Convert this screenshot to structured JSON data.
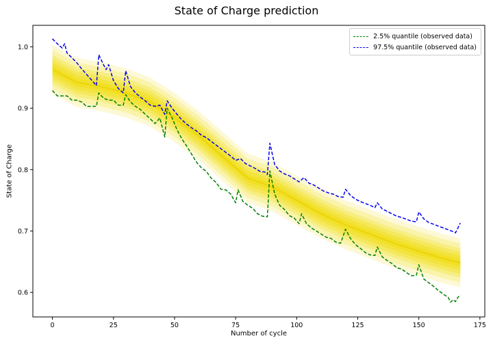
{
  "chart_data": {
    "type": "line",
    "title": "State of Charge prediction",
    "xlabel": "Number of cycle",
    "ylabel": "State of Charge",
    "xlim": [
      -8,
      177
    ],
    "ylim": [
      0.56,
      1.035
    ],
    "xticks": [
      0,
      25,
      50,
      75,
      100,
      125,
      150,
      175
    ],
    "yticks": [
      0.6,
      0.7,
      0.8,
      0.9,
      1.0
    ],
    "xtick_labels": [
      "0",
      "25",
      "50",
      "75",
      "100",
      "125",
      "150",
      "175"
    ],
    "ytick_labels": [
      "0.6",
      "0.7",
      "0.8",
      "0.9",
      "1.0"
    ],
    "grid": false,
    "legend_position": "top-right",
    "prediction_band": {
      "color": "#f0dc00",
      "x": [
        0,
        10,
        20,
        30,
        40,
        50,
        60,
        70,
        80,
        90,
        100,
        110,
        120,
        130,
        140,
        150,
        160,
        167
      ],
      "median": [
        0.963,
        0.942,
        0.935,
        0.925,
        0.91,
        0.885,
        0.855,
        0.82,
        0.786,
        0.772,
        0.75,
        0.728,
        0.71,
        0.695,
        0.68,
        0.667,
        0.655,
        0.648
      ],
      "quantile_offsets": [
        0.006,
        0.012,
        0.018,
        0.024,
        0.032,
        0.04
      ]
    },
    "series": [
      {
        "name": "2.5% quantile (observed data)",
        "color": "#008000",
        "x": [
          0,
          2,
          4,
          6,
          8,
          10,
          12,
          14,
          16,
          18,
          19,
          21,
          23,
          25,
          27,
          29,
          30,
          32,
          34,
          36,
          38,
          40,
          42,
          44,
          46,
          47,
          49,
          51,
          53,
          55,
          57,
          59,
          61,
          63,
          65,
          67,
          69,
          71,
          73,
          75,
          76,
          78,
          80,
          82,
          84,
          86,
          88,
          89,
          91,
          93,
          95,
          97,
          99,
          101,
          102,
          104,
          106,
          108,
          110,
          112,
          114,
          116,
          118,
          120,
          122,
          124,
          126,
          128,
          130,
          132,
          133,
          135,
          137,
          139,
          141,
          143,
          145,
          147,
          149,
          150,
          152,
          154,
          156,
          158,
          160,
          162,
          163,
          164,
          165,
          166,
          167
        ],
        "values": [
          0.929,
          0.92,
          0.92,
          0.92,
          0.913,
          0.913,
          0.91,
          0.903,
          0.903,
          0.903,
          0.925,
          0.916,
          0.913,
          0.913,
          0.905,
          0.905,
          0.922,
          0.91,
          0.903,
          0.898,
          0.89,
          0.883,
          0.875,
          0.884,
          0.853,
          0.9,
          0.884,
          0.865,
          0.85,
          0.838,
          0.825,
          0.812,
          0.803,
          0.797,
          0.786,
          0.779,
          0.768,
          0.767,
          0.76,
          0.746,
          0.767,
          0.748,
          0.742,
          0.737,
          0.728,
          0.724,
          0.723,
          0.798,
          0.76,
          0.742,
          0.735,
          0.725,
          0.721,
          0.712,
          0.728,
          0.712,
          0.705,
          0.7,
          0.695,
          0.69,
          0.688,
          0.682,
          0.68,
          0.703,
          0.688,
          0.678,
          0.672,
          0.665,
          0.661,
          0.66,
          0.674,
          0.658,
          0.652,
          0.647,
          0.64,
          0.638,
          0.632,
          0.627,
          0.628,
          0.645,
          0.622,
          0.616,
          0.61,
          0.603,
          0.597,
          0.592,
          0.584,
          0.588,
          0.585,
          0.592,
          0.596
        ]
      },
      {
        "name": "97.5% quantile (observed data)",
        "color": "#0000ee",
        "x": [
          0,
          2,
          4,
          5,
          6,
          8,
          10,
          12,
          14,
          16,
          18,
          19,
          21,
          22,
          23,
          25,
          27,
          29,
          30,
          32,
          34,
          36,
          38,
          40,
          42,
          44,
          46,
          47,
          49,
          51,
          53,
          55,
          57,
          59,
          61,
          63,
          65,
          67,
          69,
          71,
          73,
          75,
          77,
          79,
          81,
          83,
          85,
          87,
          88,
          89,
          91,
          93,
          95,
          97,
          99,
          101,
          103,
          105,
          107,
          109,
          111,
          113,
          115,
          117,
          119,
          120,
          122,
          124,
          126,
          128,
          130,
          132,
          133,
          135,
          137,
          139,
          141,
          143,
          145,
          147,
          149,
          150,
          152,
          154,
          156,
          158,
          160,
          162,
          164,
          165,
          166,
          167
        ],
        "values": [
          1.013,
          1.005,
          0.998,
          1.005,
          0.99,
          0.982,
          0.974,
          0.964,
          0.955,
          0.946,
          0.937,
          0.987,
          0.97,
          0.963,
          0.971,
          0.945,
          0.932,
          0.925,
          0.961,
          0.935,
          0.925,
          0.918,
          0.912,
          0.905,
          0.903,
          0.905,
          0.89,
          0.912,
          0.9,
          0.89,
          0.881,
          0.874,
          0.868,
          0.863,
          0.856,
          0.852,
          0.846,
          0.84,
          0.834,
          0.828,
          0.822,
          0.815,
          0.818,
          0.81,
          0.806,
          0.802,
          0.797,
          0.796,
          0.792,
          0.843,
          0.808,
          0.798,
          0.793,
          0.79,
          0.785,
          0.78,
          0.787,
          0.778,
          0.775,
          0.77,
          0.765,
          0.762,
          0.76,
          0.756,
          0.755,
          0.768,
          0.758,
          0.752,
          0.748,
          0.745,
          0.742,
          0.738,
          0.746,
          0.736,
          0.732,
          0.728,
          0.724,
          0.722,
          0.719,
          0.716,
          0.715,
          0.731,
          0.72,
          0.714,
          0.711,
          0.708,
          0.705,
          0.702,
          0.699,
          0.697,
          0.705,
          0.713
        ]
      }
    ]
  }
}
